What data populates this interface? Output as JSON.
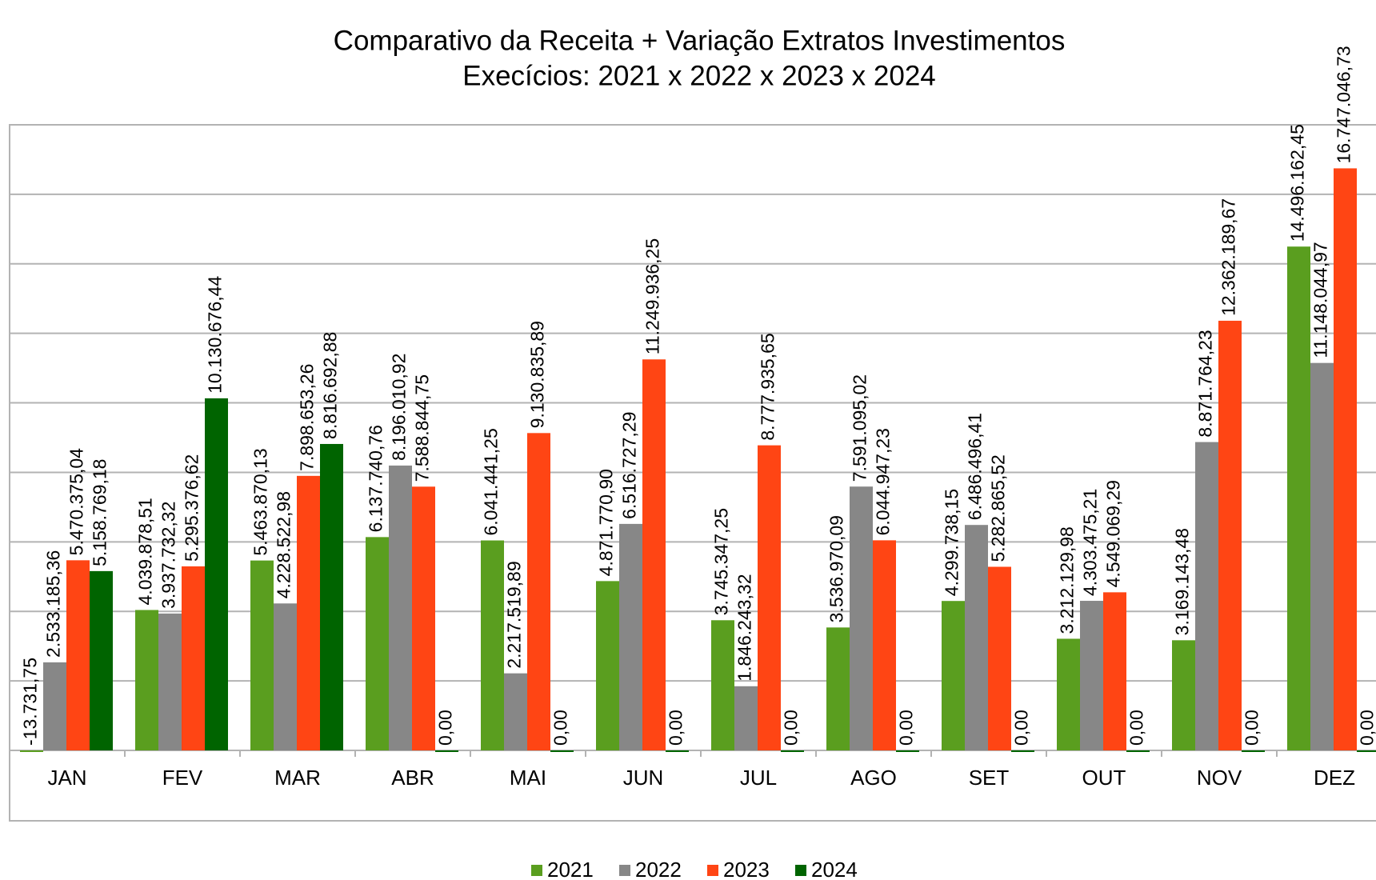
{
  "chart_data": {
    "type": "bar",
    "title": "Comparativo da Receita + Variação Extratos Investimentos",
    "subtitle": "Execícios: 2021 x 2022 x 2023 x 2024",
    "categories": [
      "JAN",
      "FEV",
      "MAR",
      "ABR",
      "MAI",
      "JUN",
      "JUL",
      "AGO",
      "SET",
      "OUT",
      "NOV",
      "DEZ"
    ],
    "series": [
      {
        "name": "2021",
        "color": "#5a9e1f",
        "values": [
          -13731.75,
          4039878.51,
          5463870.13,
          6137740.76,
          6041441.25,
          4871770.9,
          3745347.25,
          3536970.09,
          4299738.15,
          3212129.98,
          3169143.48,
          14496162.45
        ],
        "value_labels": [
          "-13.731,75",
          "4.039.878,51",
          "5.463.870,13",
          "6.137.740,76",
          "6.041.441,25",
          "4.871.770,90",
          "3.745.347,25",
          "3.536.970,09",
          "4.299.738,15",
          "3.212.129,98",
          "3.169.143,48",
          "14.496.162,45"
        ]
      },
      {
        "name": "2022",
        "color": "#878787",
        "values": [
          2533185.36,
          3937732.32,
          4228522.98,
          8196010.92,
          2217519.89,
          6516727.29,
          1846243.32,
          7591095.02,
          6486496.41,
          4303475.21,
          8871764.23,
          11148044.97
        ],
        "value_labels": [
          "2.533.185,36",
          "3.937.732,32",
          "4.228.522,98",
          "8.196.010,92",
          "2.217.519,89",
          "6.516.727,29",
          "1.846.243,32",
          "7.591.095,02",
          "6.486.496,41",
          "4.303.475,21",
          "8.871.764,23",
          "11.148.044,97"
        ]
      },
      {
        "name": "2023",
        "color": "#ff4514",
        "values": [
          5470375.04,
          5295376.62,
          7898653.26,
          7588844.75,
          9130835.89,
          11249936.25,
          8777935.65,
          6044947.23,
          5282865.52,
          4549069.29,
          12362189.67,
          16747046.73
        ],
        "value_labels": [
          "5.470.375,04",
          "5.295.376,62",
          "7.898.653,26",
          "7.588.844,75",
          "9.130.835,89",
          "11.249.936,25",
          "8.777.935,65",
          "6.044.947,23",
          "5.282.865,52",
          "4.549.069,29",
          "12.362.189,67",
          "16.747.046,73"
        ]
      },
      {
        "name": "2024",
        "color": "#006400",
        "values": [
          5158769.18,
          10130676.44,
          8816692.88,
          0,
          0,
          0,
          0,
          0,
          0,
          0,
          0,
          0
        ],
        "value_labels": [
          "5.158.769,18",
          "10.130.676,44",
          "8.816.692,88",
          "0,00",
          "0,00",
          "0,00",
          "0,00",
          "0,00",
          "0,00",
          "0,00",
          "0,00",
          "0,00"
        ]
      }
    ],
    "ylim": [
      0,
      18000000
    ],
    "yticks": [
      0,
      2000000,
      4000000,
      6000000,
      8000000,
      10000000,
      12000000,
      14000000,
      16000000,
      18000000
    ],
    "grid": true,
    "legend": "bottom"
  }
}
